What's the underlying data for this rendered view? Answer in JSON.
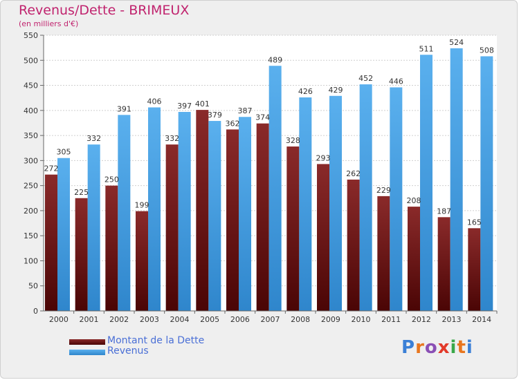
{
  "header": {
    "title": "Revenus/Dette - BRIMEUX",
    "subtitle": "(en milliers d'€)"
  },
  "legend": {
    "items": [
      {
        "label": "Montant de la Dette",
        "color": "#7a1a1a"
      },
      {
        "label": "Revenus",
        "color": "#4aa3e6"
      }
    ]
  },
  "logo": {
    "letters": [
      "P",
      "r",
      "o",
      "x",
      "i",
      "t",
      "i"
    ],
    "colors": [
      "#3a7fd6",
      "#e8761e",
      "#8a4fb5",
      "#e23a2a",
      "#3aa84a",
      "#e8761e",
      "#3a7fd6"
    ]
  },
  "chart_data": {
    "type": "bar",
    "title": "Revenus/Dette - BRIMEUX",
    "subtitle": "(en milliers d'€)",
    "categories": [
      "2000",
      "2001",
      "2002",
      "2003",
      "2004",
      "2005",
      "2006",
      "2007",
      "2008",
      "2009",
      "2010",
      "2011",
      "2012",
      "2013",
      "2014"
    ],
    "series": [
      {
        "name": "Montant de la Dette",
        "color": "#7a1a1a",
        "values": [
          272,
          225,
          250,
          199,
          332,
          401,
          362,
          374,
          328,
          293,
          262,
          229,
          208,
          187,
          165
        ]
      },
      {
        "name": "Revenus",
        "color": "#4aa3e6",
        "values": [
          305,
          332,
          391,
          406,
          397,
          379,
          387,
          489,
          426,
          429,
          452,
          446,
          511,
          524,
          508
        ]
      }
    ],
    "ylim": [
      0,
      550
    ],
    "yticks": [
      "0",
      "50",
      "100",
      "150",
      "200",
      "250",
      "300",
      "350",
      "400",
      "450",
      "500",
      "550"
    ],
    "grid": true,
    "legend_position": "bottom-left"
  }
}
